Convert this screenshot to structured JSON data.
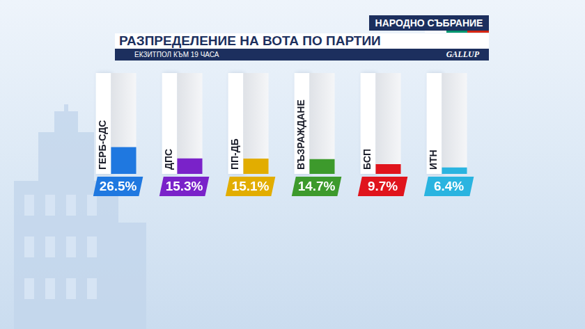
{
  "header": {
    "label": "НАРОДНО СЪБРАНИЕ",
    "logo": "GALLUP"
  },
  "chart_data": {
    "type": "bar",
    "title": "РАЗПРЕДЕЛЕНИЕ НА ВОТА ПО ПАРТИИ",
    "subtitle": "ЕКЗИТПОЛ КЪМ 19 ЧАСА",
    "categories": [
      "ГЕРБ-СДС",
      "ДПС",
      "ПП-ДБ",
      "ВЪЗРАЖДАНЕ",
      "БСП",
      "ИТН"
    ],
    "values": [
      26.5,
      15.3,
      15.1,
      14.7,
      9.7,
      6.4
    ],
    "value_labels": [
      "26.5%",
      "15.3%",
      "15.1%",
      "14.7%",
      "9.7%",
      "6.4%"
    ],
    "colors": [
      "#1f78e0",
      "#7a22c9",
      "#e2ad00",
      "#3d9a2c",
      "#e0141c",
      "#2ab4e0"
    ],
    "ylim": [
      0,
      100
    ],
    "data_labels": true,
    "tick_labels": false
  }
}
